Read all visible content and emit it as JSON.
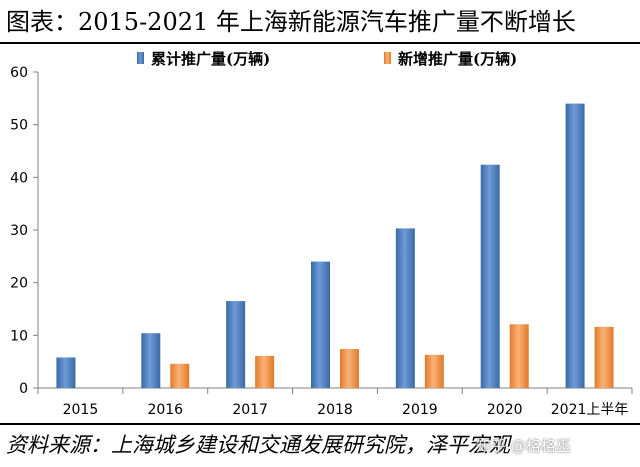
{
  "title": "图表：2015-2021 年上海新能源汽车推广量不断增长",
  "source": "资料来源：上海城乡建设和交通发展研究院，泽平宏观",
  "watermark": "知乎 @格格巫",
  "chart_data": {
    "type": "bar",
    "categories": [
      "2015",
      "2016",
      "2017",
      "2018",
      "2019",
      "2020",
      "2021上半年"
    ],
    "series": [
      {
        "name": "累计推广量(万辆)",
        "color": "#4F81BD",
        "values": [
          5.8,
          10.4,
          16.5,
          24.0,
          30.3,
          42.4,
          54.0
        ]
      },
      {
        "name": "新增推广量(万辆)",
        "color": "#F79646",
        "values": [
          null,
          4.6,
          6.1,
          7.4,
          6.3,
          12.1,
          11.6
        ]
      }
    ],
    "ylim": [
      0,
      60
    ],
    "yticks": [
      0,
      10,
      20,
      30,
      40,
      50,
      60
    ],
    "legend_position": "top",
    "grid": false
  }
}
